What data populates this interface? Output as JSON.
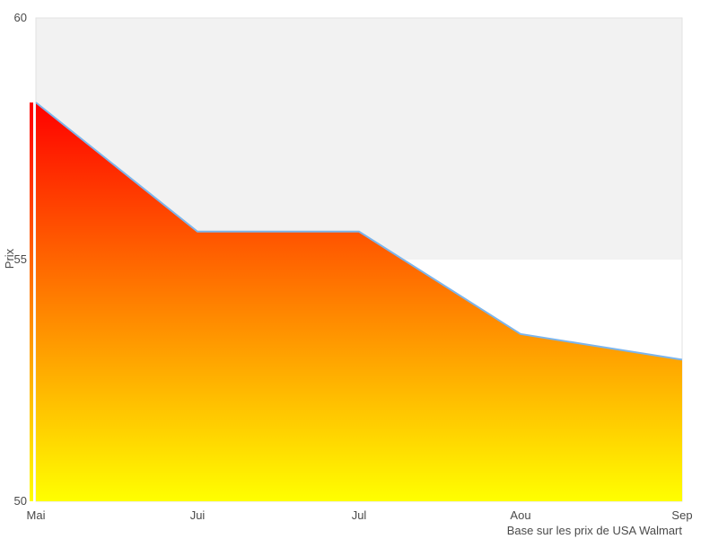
{
  "chart_data": {
    "type": "area",
    "title": "",
    "xlabel": "",
    "ylabel": "Prix",
    "caption": "Base sur les prix de USA Walmart",
    "categories": [
      "Mai",
      "Jui",
      "Jul",
      "Aou",
      "Sep"
    ],
    "values": [
      58.25,
      55.58,
      55.58,
      53.46,
      52.93
    ],
    "series": [
      {
        "name": "Prix",
        "values": [
          58.25,
          55.58,
          55.58,
          53.46,
          52.93
        ]
      }
    ],
    "ylim": [
      50,
      60
    ],
    "yticks": [
      50,
      55,
      60
    ],
    "grid": "off",
    "legend": "none",
    "plot_bands": [
      {
        "from": 55,
        "to": 60,
        "color": "#f2f2f2"
      }
    ],
    "colors": {
      "area_gradient_top": "#ff0000",
      "area_gradient_bottom": "#ffff00",
      "line": "#7cb5ec",
      "band_fill": "#f2f2f2",
      "plot_border": "#e2e2e2",
      "label_text": "#4a4a4a"
    }
  }
}
